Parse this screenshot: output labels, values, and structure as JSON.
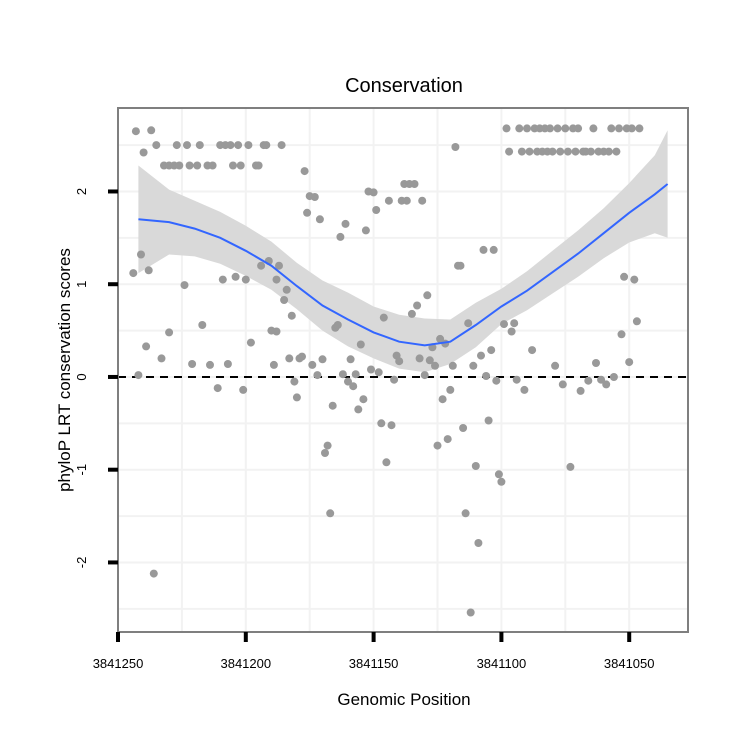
{
  "chart_data": {
    "type": "scatter",
    "title": "Conservation",
    "xlabel": "Genomic Position",
    "ylabel": "phyloP LRT conservation scores",
    "x_reversed": true,
    "xlim": [
      3841250,
      3841027
    ],
    "ylim": [
      -2.75,
      2.9
    ],
    "x_ticks": [
      3841250,
      3841200,
      3841150,
      3841100,
      3841050
    ],
    "x_tick_labels": [
      "3841250",
      "3841200",
      "3841150",
      "3841100",
      "3841050"
    ],
    "y_ticks": [
      -2,
      -1,
      0,
      1,
      2
    ],
    "y_tick_labels": [
      "-2",
      "-1",
      "0",
      "1",
      "2"
    ],
    "reference_line": {
      "y": 0,
      "style": "dashed"
    },
    "grid": true,
    "colors": {
      "points": "#999999",
      "smooth": "#3366ff",
      "ribbon": "#d9d9d9",
      "frame": "#7f7f7f",
      "grid": "#f2f2f2"
    },
    "smooth": {
      "x": [
        3841242,
        3841230,
        3841220,
        3841210,
        3841200,
        3841190,
        3841180,
        3841170,
        3841160,
        3841150,
        3841140,
        3841130,
        3841120,
        3841110,
        3841100,
        3841090,
        3841080,
        3841070,
        3841060,
        3841050,
        3841040,
        3841035
      ],
      "y": [
        1.7,
        1.67,
        1.6,
        1.5,
        1.36,
        1.2,
        0.98,
        0.77,
        0.62,
        0.48,
        0.38,
        0.34,
        0.38,
        0.56,
        0.76,
        0.93,
        1.13,
        1.33,
        1.55,
        1.77,
        1.97,
        2.08
      ],
      "lower": [
        1.12,
        1.32,
        1.3,
        1.22,
        1.09,
        0.94,
        0.73,
        0.5,
        0.33,
        0.2,
        0.09,
        0.05,
        0.14,
        0.32,
        0.57,
        0.72,
        0.9,
        1.08,
        1.28,
        1.45,
        1.55,
        1.5
      ],
      "upper": [
        2.28,
        2.02,
        1.9,
        1.78,
        1.63,
        1.46,
        1.23,
        1.04,
        0.91,
        0.76,
        0.67,
        0.63,
        0.62,
        0.8,
        0.95,
        1.14,
        1.36,
        1.58,
        1.82,
        2.09,
        2.39,
        2.66
      ]
    },
    "points": [
      [
        3841244,
        1.12
      ],
      [
        3841243,
        2.65
      ],
      [
        3841242,
        0.02
      ],
      [
        3841241,
        1.32
      ],
      [
        3841240,
        2.42
      ],
      [
        3841239,
        0.33
      ],
      [
        3841238,
        1.15
      ],
      [
        3841237,
        2.66
      ],
      [
        3841236,
        -2.12
      ],
      [
        3841235,
        2.5
      ],
      [
        3841233,
        0.2
      ],
      [
        3841232,
        2.28
      ],
      [
        3841230,
        0.48
      ],
      [
        3841230,
        2.28
      ],
      [
        3841228,
        2.28
      ],
      [
        3841227,
        2.5
      ],
      [
        3841226,
        2.28
      ],
      [
        3841224,
        0.99
      ],
      [
        3841223,
        2.5
      ],
      [
        3841222,
        2.28
      ],
      [
        3841221,
        0.14
      ],
      [
        3841219,
        2.28
      ],
      [
        3841218,
        2.5
      ],
      [
        3841217,
        0.56
      ],
      [
        3841215,
        2.28
      ],
      [
        3841214,
        0.13
      ],
      [
        3841213,
        2.28
      ],
      [
        3841211,
        -0.12
      ],
      [
        3841210,
        2.5
      ],
      [
        3841209,
        1.05
      ],
      [
        3841208,
        2.5
      ],
      [
        3841207,
        0.14
      ],
      [
        3841206,
        2.5
      ],
      [
        3841205,
        2.28
      ],
      [
        3841204,
        1.08
      ],
      [
        3841203,
        2.5
      ],
      [
        3841202,
        2.28
      ],
      [
        3841201,
        -0.14
      ],
      [
        3841200,
        1.05
      ],
      [
        3841199,
        2.5
      ],
      [
        3841198,
        0.37
      ],
      [
        3841196,
        2.28
      ],
      [
        3841195,
        2.28
      ],
      [
        3841194,
        1.2
      ],
      [
        3841193,
        2.5
      ],
      [
        3841192,
        2.5
      ],
      [
        3841191,
        1.25
      ],
      [
        3841190,
        0.5
      ],
      [
        3841189,
        0.13
      ],
      [
        3841188,
        1.05
      ],
      [
        3841188,
        0.49
      ],
      [
        3841187,
        1.2
      ],
      [
        3841186,
        2.5
      ],
      [
        3841185,
        0.83
      ],
      [
        3841184,
        0.94
      ],
      [
        3841183,
        0.2
      ],
      [
        3841182,
        0.66
      ],
      [
        3841181,
        -0.05
      ],
      [
        3841180,
        -0.22
      ],
      [
        3841179,
        0.2
      ],
      [
        3841178,
        0.22
      ],
      [
        3841177,
        2.22
      ],
      [
        3841176,
        1.77
      ],
      [
        3841175,
        1.95
      ],
      [
        3841174,
        0.13
      ],
      [
        3841173,
        1.94
      ],
      [
        3841172,
        0.02
      ],
      [
        3841171,
        1.7
      ],
      [
        3841170,
        0.19
      ],
      [
        3841169,
        -0.82
      ],
      [
        3841168,
        -0.74
      ],
      [
        3841167,
        -1.47
      ],
      [
        3841166,
        -0.31
      ],
      [
        3841165,
        0.53
      ],
      [
        3841164,
        0.56
      ],
      [
        3841163,
        1.51
      ],
      [
        3841162,
        0.03
      ],
      [
        3841161,
        1.65
      ],
      [
        3841160,
        -0.05
      ],
      [
        3841159,
        0.19
      ],
      [
        3841158,
        -0.1
      ],
      [
        3841157,
        0.03
      ],
      [
        3841156,
        -0.35
      ],
      [
        3841155,
        0.35
      ],
      [
        3841154,
        -0.24
      ],
      [
        3841153,
        1.58
      ],
      [
        3841152,
        2.0
      ],
      [
        3841151,
        0.08
      ],
      [
        3841150,
        1.99
      ],
      [
        3841149,
        1.8
      ],
      [
        3841148,
        0.05
      ],
      [
        3841147,
        -0.5
      ],
      [
        3841146,
        0.64
      ],
      [
        3841145,
        -0.92
      ],
      [
        3841144,
        1.9
      ],
      [
        3841143,
        -0.52
      ],
      [
        3841142,
        -0.03
      ],
      [
        3841141,
        0.23
      ],
      [
        3841140,
        0.17
      ],
      [
        3841139,
        1.9
      ],
      [
        3841138,
        2.08
      ],
      [
        3841137,
        1.9
      ],
      [
        3841136,
        2.08
      ],
      [
        3841135,
        0.68
      ],
      [
        3841134,
        2.08
      ],
      [
        3841133,
        0.77
      ],
      [
        3841132,
        0.2
      ],
      [
        3841131,
        1.9
      ],
      [
        3841130,
        0.02
      ],
      [
        3841129,
        0.88
      ],
      [
        3841128,
        0.18
      ],
      [
        3841127,
        0.32
      ],
      [
        3841126,
        0.12
      ],
      [
        3841125,
        -0.74
      ],
      [
        3841124,
        0.41
      ],
      [
        3841123,
        -0.24
      ],
      [
        3841122,
        0.36
      ],
      [
        3841121,
        -0.67
      ],
      [
        3841120,
        -0.14
      ],
      [
        3841119,
        0.12
      ],
      [
        3841118,
        2.48
      ],
      [
        3841117,
        1.2
      ],
      [
        3841116,
        1.2
      ],
      [
        3841115,
        -0.55
      ],
      [
        3841114,
        -1.47
      ],
      [
        3841113,
        0.58
      ],
      [
        3841112,
        -2.54
      ],
      [
        3841111,
        0.12
      ],
      [
        3841110,
        -0.96
      ],
      [
        3841109,
        -1.79
      ],
      [
        3841108,
        0.23
      ],
      [
        3841107,
        1.37
      ],
      [
        3841106,
        0.01
      ],
      [
        3841105,
        -0.47
      ],
      [
        3841104,
        0.29
      ],
      [
        3841103,
        1.37
      ],
      [
        3841102,
        -0.04
      ],
      [
        3841101,
        -1.05
      ],
      [
        3841100,
        -1.13
      ],
      [
        3841099,
        0.57
      ],
      [
        3841098,
        2.68
      ],
      [
        3841097,
        2.43
      ],
      [
        3841096,
        0.49
      ],
      [
        3841095,
        0.58
      ],
      [
        3841094,
        -0.03
      ],
      [
        3841093,
        2.68
      ],
      [
        3841092,
        2.43
      ],
      [
        3841091,
        -0.14
      ],
      [
        3841090,
        2.68
      ],
      [
        3841089,
        2.43
      ],
      [
        3841088,
        0.29
      ],
      [
        3841087,
        2.68
      ],
      [
        3841086,
        2.43
      ],
      [
        3841085,
        2.68
      ],
      [
        3841084,
        2.43
      ],
      [
        3841083,
        2.68
      ],
      [
        3841082,
        2.43
      ],
      [
        3841081,
        2.68
      ],
      [
        3841080,
        2.43
      ],
      [
        3841079,
        0.12
      ],
      [
        3841078,
        2.68
      ],
      [
        3841077,
        2.43
      ],
      [
        3841076,
        -0.08
      ],
      [
        3841075,
        2.68
      ],
      [
        3841074,
        2.43
      ],
      [
        3841073,
        -0.97
      ],
      [
        3841072,
        2.68
      ],
      [
        3841071,
        2.43
      ],
      [
        3841070,
        2.68
      ],
      [
        3841069,
        -0.15
      ],
      [
        3841068,
        2.43
      ],
      [
        3841067,
        2.43
      ],
      [
        3841066,
        -0.04
      ],
      [
        3841065,
        2.43
      ],
      [
        3841064,
        2.68
      ],
      [
        3841063,
        0.15
      ],
      [
        3841062,
        2.43
      ],
      [
        3841061,
        -0.03
      ],
      [
        3841060,
        2.43
      ],
      [
        3841059,
        -0.08
      ],
      [
        3841058,
        2.43
      ],
      [
        3841057,
        2.68
      ],
      [
        3841056,
        0.0
      ],
      [
        3841055,
        2.43
      ],
      [
        3841054,
        2.68
      ],
      [
        3841053,
        0.46
      ],
      [
        3841052,
        1.08
      ],
      [
        3841051,
        2.68
      ],
      [
        3841050,
        0.16
      ],
      [
        3841049,
        2.68
      ],
      [
        3841048,
        1.05
      ],
      [
        3841047,
        0.6
      ],
      [
        3841046,
        2.68
      ]
    ]
  }
}
